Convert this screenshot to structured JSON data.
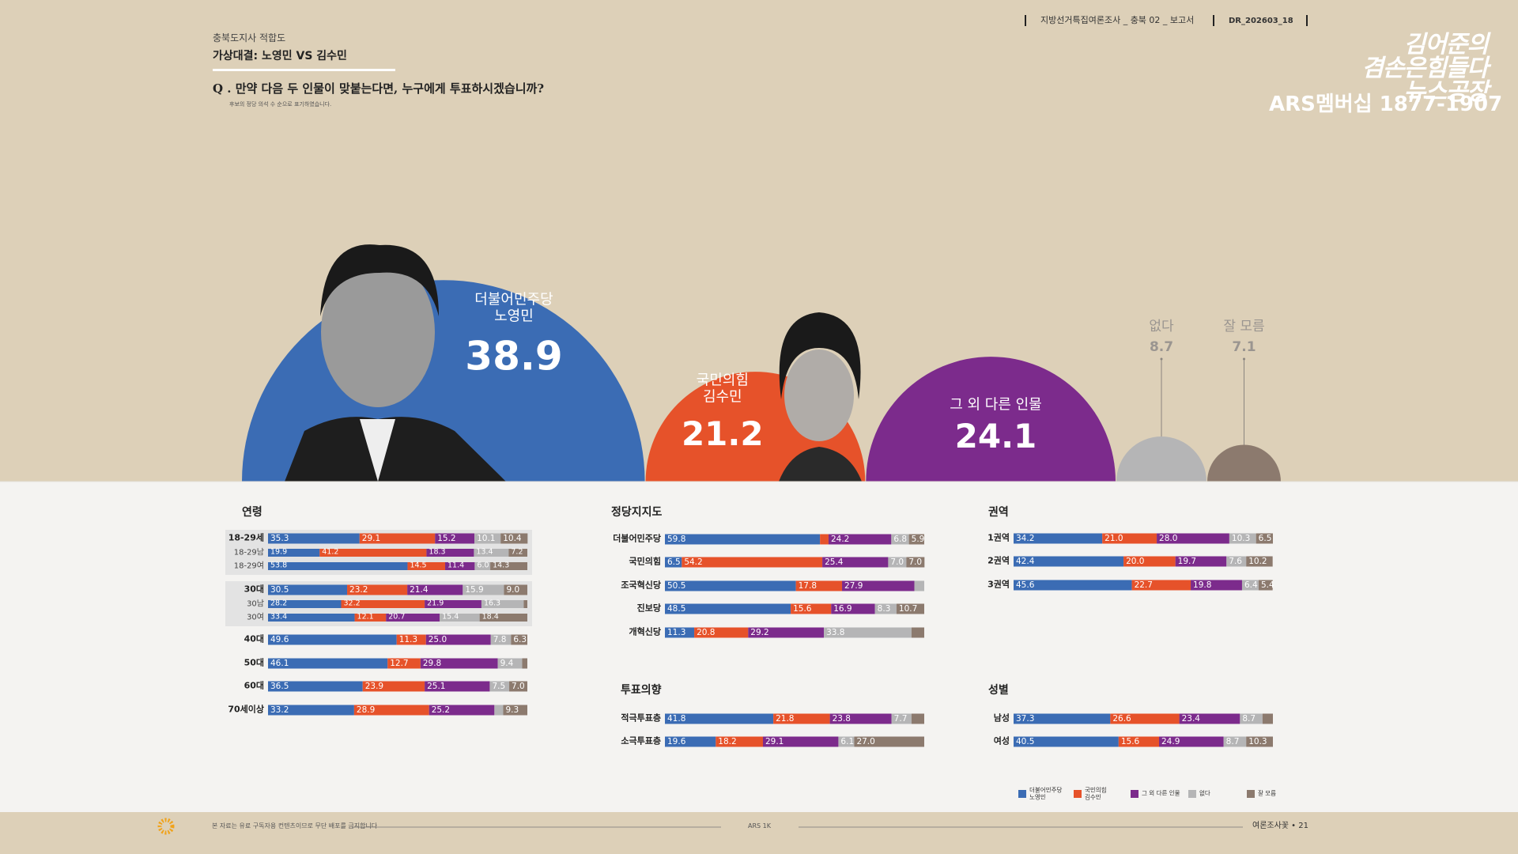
{
  "header": {
    "kicker": "충북도지사 적합도",
    "title": "가상대결: 노영민 VS 김수민",
    "question": "Q . 만약 다음 두 인물이 맞붙는다면, 누구에게 투표하시겠습니까?",
    "note": "후보의 정당 의석 수 순으로 표기하였습니다.",
    "report": "지방선거특집여론조사 _ 충북 02 _ 보고서",
    "code": "DR_202603_18",
    "logo": "김어준의\n겸손은힘들다\n뉴스공장",
    "phone": "ARS멤버십 1877-1907"
  },
  "chart_data": [
    {
      "type": "bubble",
      "categories": [
        "더불어민주당\n노영민",
        "국민의힘\n김수민",
        "그 외 다른 인물",
        "없다",
        "잘 모름"
      ],
      "values": [
        38.9,
        21.2,
        24.1,
        8.7,
        7.1
      ],
      "colors": [
        "#3b6cb4",
        "#e6522a",
        "#7c2b8c",
        "#b5b5b6",
        "#8c7a6e"
      ]
    },
    {
      "type": "stacked-bar",
      "xlim": [
        0,
        100
      ],
      "series": [
        {
          "name": "더불어민주당\n노영민",
          "color": "#3b6cb4"
        },
        {
          "name": "국민의힘\n김수민",
          "color": "#e6522a"
        },
        {
          "name": "그 외 다른 인물",
          "color": "#7c2b8c"
        },
        {
          "name": "없다",
          "color": "#b5b5b6"
        },
        {
          "name": "잘 모름",
          "color": "#8c7a6e"
        }
      ],
      "panels": [
        {
          "title": "연령",
          "categories": [
            "18-29세",
            "18-29남",
            "18-29여",
            "30대",
            "30남",
            "30여",
            "40대",
            "50대",
            "60대",
            "70세이상"
          ],
          "values": [
            [
              35.3,
              29.1,
              15.2,
              10.1,
              10.4
            ],
            [
              19.9,
              41.2,
              18.3,
              13.4,
              7.2
            ],
            [
              53.8,
              14.5,
              11.4,
              6.0,
              14.3
            ],
            [
              30.5,
              23.2,
              21.4,
              15.9,
              9.0
            ],
            [
              28.2,
              32.2,
              21.9,
              16.3,
              1.4
            ],
            [
              33.4,
              12.1,
              20.7,
              15.4,
              18.4
            ],
            [
              49.6,
              11.3,
              25.0,
              7.8,
              6.3
            ],
            [
              46.1,
              12.7,
              29.8,
              9.4,
              2.0
            ],
            [
              36.5,
              23.9,
              25.1,
              7.5,
              7.0
            ],
            [
              33.2,
              28.9,
              25.2,
              3.4,
              9.3
            ]
          ],
          "value_labels": [
            [
              "35.3",
              "29.1",
              "15.2",
              "10.1",
              "10.4"
            ],
            [
              "19.9",
              "41.2",
              "18.3",
              "13.4",
              "7.2"
            ],
            [
              "53.8",
              "14.5",
              "11.4",
              "6.0",
              "14.3"
            ],
            [
              "30.5",
              "23.2",
              "21.4",
              "15.9",
              "9.0"
            ],
            [
              "28.2",
              "32.2",
              "21.9",
              "16.3",
              null
            ],
            [
              "33.4",
              "12.1",
              "20.7",
              "15.4",
              "18.4"
            ],
            [
              "49.6",
              "11.3",
              "25.0",
              "7.8",
              "6.3"
            ],
            [
              "46.1",
              "12.7",
              "29.8",
              "9.4",
              null
            ],
            [
              "36.5",
              "23.9",
              "25.1",
              "7.5",
              "7.0"
            ],
            [
              "33.2",
              "28.9",
              "25.2",
              null,
              "9.3"
            ]
          ]
        },
        {
          "title": "정당지지도",
          "categories": [
            "더불어민주당",
            "국민의힘",
            "조국혁신당",
            "진보당",
            "개혁신당"
          ],
          "values": [
            [
              59.8,
              3.3,
              24.2,
              6.8,
              5.9
            ],
            [
              6.5,
              54.2,
              25.4,
              7.0,
              7.0
            ],
            [
              50.5,
              17.8,
              27.9,
              3.8,
              null
            ],
            [
              48.5,
              15.6,
              16.9,
              8.3,
              10.7
            ],
            [
              11.3,
              20.8,
              29.2,
              33.8,
              4.9
            ]
          ],
          "value_labels": [
            [
              "59.8",
              null,
              "24.2",
              "6.8",
              "5.9"
            ],
            [
              "6.5",
              "54.2",
              "25.4",
              "7.0",
              "7.0"
            ],
            [
              "50.5",
              "17.8",
              "27.9",
              null,
              null
            ],
            [
              "48.5",
              "15.6",
              "16.9",
              "8.3",
              "10.7"
            ],
            [
              "11.3",
              "20.8",
              "29.2",
              "33.8",
              null
            ]
          ]
        },
        {
          "title": "투표의향",
          "categories": [
            "적극투표층",
            "소극투표층"
          ],
          "values": [
            [
              41.8,
              21.8,
              23.8,
              7.7,
              4.9
            ],
            [
              19.6,
              18.2,
              29.1,
              6.1,
              27.0
            ]
          ],
          "value_labels": [
            [
              "41.8",
              "21.8",
              "23.8",
              "7.7",
              null
            ],
            [
              "19.6",
              "18.2",
              "29.1",
              "6.1",
              "27.0"
            ]
          ]
        },
        {
          "title": "권역",
          "categories": [
            "1권역",
            "2권역",
            "3권역"
          ],
          "values": [
            [
              34.2,
              21.0,
              28.0,
              10.3,
              6.5
            ],
            [
              42.4,
              20.0,
              19.7,
              7.6,
              10.2
            ],
            [
              45.6,
              22.7,
              19.8,
              6.4,
              5.4
            ]
          ],
          "value_labels": [
            [
              "34.2",
              "21.0",
              "28.0",
              "10.3",
              "6.5"
            ],
            [
              "42.4",
              "20.0",
              "19.7",
              "7.6",
              "10.2"
            ],
            [
              "45.6",
              "22.7",
              "19.8",
              "6.4",
              "5.4"
            ]
          ]
        },
        {
          "title": "성별",
          "categories": [
            "남성",
            "여성"
          ],
          "values": [
            [
              37.3,
              26.6,
              23.4,
              8.7,
              4.0
            ],
            [
              40.5,
              15.6,
              24.9,
              8.7,
              10.3
            ]
          ],
          "value_labels": [
            [
              "37.3",
              "26.6",
              "23.4",
              "8.7",
              null
            ],
            [
              "40.5",
              "15.6",
              "24.9",
              "8.7",
              "10.3"
            ]
          ]
        }
      ]
    }
  ],
  "footer": {
    "notice": "본 자료는 유료 구독자용 컨텐츠이므로 무단 배포를 금지합니다",
    "center": "ARS 1K",
    "page": "여론조사꽃 • 21"
  }
}
